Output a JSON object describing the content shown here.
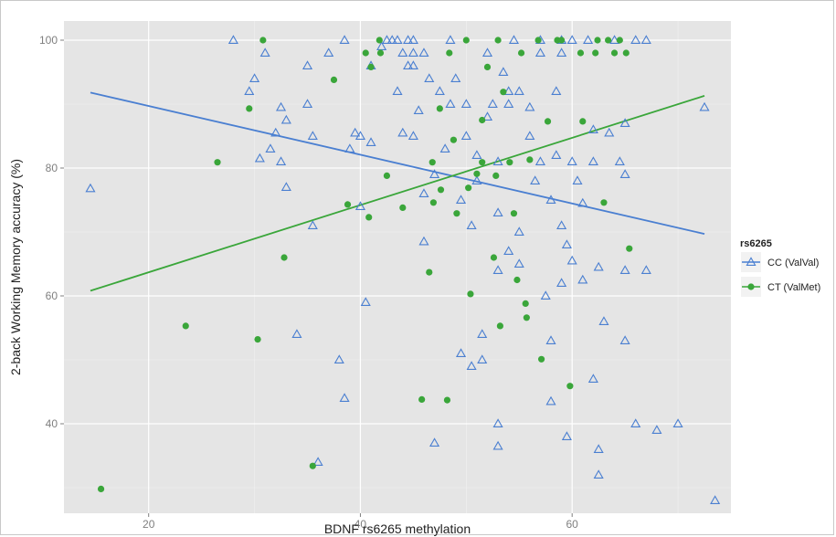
{
  "chart_data": {
    "type": "scatter",
    "title": "",
    "xlabel": "BDNF rs6265 methylation",
    "ylabel": "2-back Working Memory accuracy (%)",
    "xlim": [
      12,
      75
    ],
    "ylim": [
      26,
      103
    ],
    "x_ticks": [
      20,
      40,
      60
    ],
    "y_ticks": [
      40,
      60,
      80,
      100
    ],
    "grid": true,
    "legend": {
      "title": "rs6265",
      "position": "right",
      "entries": [
        {
          "key": "cc",
          "label": "CC (ValVal)"
        },
        {
          "key": "ct",
          "label": "CT (ValMet)"
        }
      ]
    },
    "series": [
      {
        "key": "cc",
        "name": "CC (ValVal)",
        "marker": "triangle-open",
        "color": "#4a7fd1",
        "fit": [
          [
            14.5,
            91.8
          ],
          [
            72.5,
            69.7
          ]
        ],
        "points": [
          [
            14.5,
            76.8
          ],
          [
            28,
            100
          ],
          [
            29.5,
            92
          ],
          [
            30,
            94
          ],
          [
            30.5,
            81.5
          ],
          [
            31,
            98
          ],
          [
            31.5,
            83
          ],
          [
            32,
            85.5
          ],
          [
            32.5,
            89.5
          ],
          [
            32.5,
            81
          ],
          [
            33,
            87.5
          ],
          [
            33,
            77
          ],
          [
            34,
            54
          ],
          [
            35,
            90
          ],
          [
            35.5,
            85
          ],
          [
            35.5,
            71
          ],
          [
            35,
            96
          ],
          [
            36,
            34
          ],
          [
            37,
            98
          ],
          [
            38,
            50
          ],
          [
            38.5,
            100
          ],
          [
            38.5,
            44
          ],
          [
            39,
            83
          ],
          [
            39.5,
            85.5
          ],
          [
            40,
            85
          ],
          [
            40,
            74
          ],
          [
            40.5,
            59
          ],
          [
            41,
            84
          ],
          [
            41,
            96
          ],
          [
            42,
            99
          ],
          [
            42.5,
            100
          ],
          [
            43,
            100
          ],
          [
            43.5,
            100
          ],
          [
            43.5,
            92
          ],
          [
            44,
            85.5
          ],
          [
            44,
            98
          ],
          [
            44.5,
            100
          ],
          [
            44.5,
            96
          ],
          [
            45,
            85
          ],
          [
            45,
            100
          ],
          [
            45,
            98
          ],
          [
            45,
            96
          ],
          [
            45.5,
            89
          ],
          [
            46,
            98
          ],
          [
            46,
            76
          ],
          [
            46,
            68.5
          ],
          [
            46.5,
            94
          ],
          [
            47,
            37
          ],
          [
            47,
            79
          ],
          [
            47.5,
            92
          ],
          [
            48,
            83
          ],
          [
            48.5,
            100
          ],
          [
            48.5,
            90
          ],
          [
            49,
            94
          ],
          [
            49.5,
            51
          ],
          [
            49.5,
            75
          ],
          [
            50,
            90
          ],
          [
            50,
            85
          ],
          [
            50.5,
            71
          ],
          [
            50.5,
            49
          ],
          [
            51,
            78
          ],
          [
            51,
            82
          ],
          [
            51.5,
            54
          ],
          [
            51.5,
            50
          ],
          [
            52,
            88
          ],
          [
            52,
            98
          ],
          [
            52.5,
            90
          ],
          [
            53,
            81
          ],
          [
            53,
            73
          ],
          [
            53,
            64
          ],
          [
            53,
            40
          ],
          [
            53,
            36.5
          ],
          [
            53.5,
            95
          ],
          [
            54,
            92
          ],
          [
            54,
            90
          ],
          [
            54,
            67
          ],
          [
            54.5,
            100
          ],
          [
            55,
            92
          ],
          [
            55,
            70
          ],
          [
            55,
            65
          ],
          [
            56,
            89.5
          ],
          [
            56,
            85
          ],
          [
            56.5,
            78
          ],
          [
            57,
            100
          ],
          [
            57,
            98
          ],
          [
            57,
            81
          ],
          [
            57.5,
            60
          ],
          [
            58,
            75
          ],
          [
            58,
            53
          ],
          [
            58,
            43.5
          ],
          [
            58.5,
            92
          ],
          [
            58.5,
            82
          ],
          [
            59,
            100
          ],
          [
            59,
            98
          ],
          [
            59,
            71
          ],
          [
            59,
            62
          ],
          [
            59.5,
            68
          ],
          [
            59.5,
            38
          ],
          [
            60,
            100
          ],
          [
            60,
            81
          ],
          [
            60,
            65.5
          ],
          [
            60.5,
            78
          ],
          [
            61,
            62.5
          ],
          [
            61,
            74.5
          ],
          [
            61.5,
            100
          ],
          [
            62,
            86
          ],
          [
            62,
            81
          ],
          [
            62,
            47
          ],
          [
            62.5,
            64.5
          ],
          [
            62.5,
            36
          ],
          [
            62.5,
            32
          ],
          [
            63,
            56
          ],
          [
            63.5,
            85.5
          ],
          [
            64,
            100
          ],
          [
            64.5,
            81
          ],
          [
            65,
            79
          ],
          [
            65,
            64
          ],
          [
            65,
            53
          ],
          [
            65,
            87
          ],
          [
            66,
            100
          ],
          [
            66,
            40
          ],
          [
            67,
            100
          ],
          [
            67,
            64
          ],
          [
            68,
            39
          ],
          [
            70,
            40
          ],
          [
            72.5,
            89.5
          ],
          [
            73.5,
            28
          ]
        ]
      },
      {
        "key": "ct",
        "name": "CT (ValMet)",
        "marker": "circle-filled",
        "color": "#3aa63a",
        "fit": [
          [
            14.5,
            60.8
          ],
          [
            72.5,
            91.3
          ]
        ],
        "points": [
          [
            15.5,
            29.8
          ],
          [
            23.5,
            55.3
          ],
          [
            26.5,
            80.9
          ],
          [
            29.5,
            89.3
          ],
          [
            30.3,
            53.2
          ],
          [
            30.8,
            100
          ],
          [
            32.8,
            66
          ],
          [
            35.5,
            33.4
          ],
          [
            37.5,
            93.8
          ],
          [
            38.8,
            74.3
          ],
          [
            40.5,
            98
          ],
          [
            40.8,
            72.3
          ],
          [
            41,
            95.8
          ],
          [
            41.8,
            100
          ],
          [
            41.9,
            98
          ],
          [
            42.5,
            78.8
          ],
          [
            44,
            73.8
          ],
          [
            45.8,
            43.8
          ],
          [
            46.5,
            63.7
          ],
          [
            46.8,
            80.9
          ],
          [
            46.9,
            74.6
          ],
          [
            47.5,
            89.3
          ],
          [
            47.6,
            76.6
          ],
          [
            48.2,
            43.7
          ],
          [
            48.4,
            98
          ],
          [
            48.8,
            84.4
          ],
          [
            49.1,
            72.9
          ],
          [
            50,
            100
          ],
          [
            50.2,
            76.9
          ],
          [
            50.4,
            60.3
          ],
          [
            51,
            79.1
          ],
          [
            51.5,
            87.5
          ],
          [
            51.5,
            80.9
          ],
          [
            52,
            95.8
          ],
          [
            52.6,
            66
          ],
          [
            52.8,
            78.8
          ],
          [
            53,
            100
          ],
          [
            53.2,
            55.3
          ],
          [
            53.5,
            91.9
          ],
          [
            54.1,
            80.9
          ],
          [
            54.5,
            72.9
          ],
          [
            54.8,
            62.5
          ],
          [
            55.2,
            98
          ],
          [
            55.6,
            58.8
          ],
          [
            55.7,
            56.6
          ],
          [
            56,
            81.3
          ],
          [
            56.8,
            100
          ],
          [
            57.1,
            50.1
          ],
          [
            57.7,
            87.3
          ],
          [
            58.6,
            100
          ],
          [
            59,
            100
          ],
          [
            59.8,
            45.9
          ],
          [
            60.8,
            98
          ],
          [
            61,
            87.3
          ],
          [
            62.2,
            98
          ],
          [
            62.4,
            100
          ],
          [
            63,
            74.6
          ],
          [
            63.4,
            100
          ],
          [
            64,
            98
          ],
          [
            64.5,
            100
          ],
          [
            65.1,
            98
          ],
          [
            65.4,
            67.4
          ]
        ]
      }
    ]
  }
}
